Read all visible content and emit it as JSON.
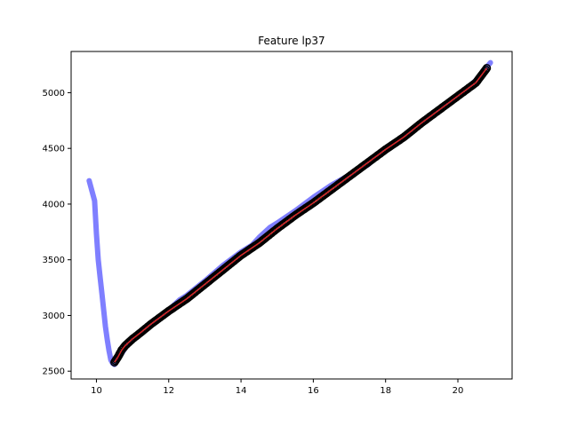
{
  "chart_data": {
    "type": "line",
    "title": "Feature lp37",
    "xlabel": "",
    "ylabel": "",
    "xlim": [
      9.3,
      21.5
    ],
    "ylim": [
      2430,
      5370
    ],
    "xticks": [
      10,
      12,
      14,
      16,
      18,
      20
    ],
    "yticks": [
      2500,
      3000,
      3500,
      4000,
      4500,
      5000
    ],
    "grid": false,
    "legend": "none",
    "series": [
      {
        "style": "thick-line",
        "color": "#7f7fff",
        "x": [
          9.8,
          9.95,
          10.0,
          10.05,
          10.1,
          10.15,
          10.2,
          10.25,
          10.3,
          10.35,
          10.4,
          10.45,
          10.5,
          10.6,
          10.8,
          11.0,
          11.5,
          12.0,
          12.3,
          12.5,
          13.0,
          13.5,
          14.0,
          14.3,
          14.5,
          14.8,
          15.0,
          15.5,
          16.0,
          16.5,
          17.0,
          17.5,
          18.0,
          18.5,
          19.0,
          19.5,
          20.0,
          20.5,
          20.9
        ],
        "y": [
          4210,
          4030,
          3730,
          3500,
          3350,
          3200,
          3050,
          2900,
          2780,
          2680,
          2600,
          2570,
          2560,
          2610,
          2710,
          2790,
          2920,
          3050,
          3140,
          3180,
          3310,
          3450,
          3570,
          3630,
          3700,
          3790,
          3830,
          3940,
          4060,
          4170,
          4260,
          4350,
          4490,
          4600,
          4720,
          4840,
          4970,
          5110,
          5270
        ]
      },
      {
        "style": "markers",
        "color": "#000000",
        "x": [
          10.5,
          10.6,
          10.7,
          10.8,
          11.0,
          11.2,
          11.5,
          12.0,
          12.5,
          13.0,
          13.5,
          14.0,
          14.5,
          15.0,
          15.5,
          16.0,
          16.5,
          17.0,
          17.5,
          18.0,
          18.5,
          19.0,
          19.5,
          20.0,
          20.5,
          20.8
        ],
        "y": [
          2580,
          2630,
          2690,
          2730,
          2790,
          2840,
          2920,
          3040,
          3150,
          3280,
          3410,
          3540,
          3650,
          3780,
          3900,
          4010,
          4130,
          4250,
          4370,
          4490,
          4600,
          4730,
          4850,
          4970,
          5090,
          5220
        ]
      },
      {
        "style": "thin-line",
        "color": "#d62728",
        "x": [
          10.5,
          10.6,
          10.7,
          10.8,
          11.0,
          11.2,
          11.5,
          12.0,
          12.5,
          13.0,
          13.5,
          14.0,
          14.5,
          15.0,
          15.5,
          16.0,
          16.5,
          17.0,
          17.5,
          18.0,
          18.5,
          19.0,
          19.5,
          20.0,
          20.5,
          20.8
        ],
        "y": [
          2580,
          2630,
          2690,
          2730,
          2790,
          2840,
          2920,
          3040,
          3150,
          3280,
          3410,
          3540,
          3650,
          3780,
          3900,
          4010,
          4130,
          4250,
          4370,
          4490,
          4600,
          4730,
          4850,
          4970,
          5090,
          5220
        ]
      }
    ]
  }
}
